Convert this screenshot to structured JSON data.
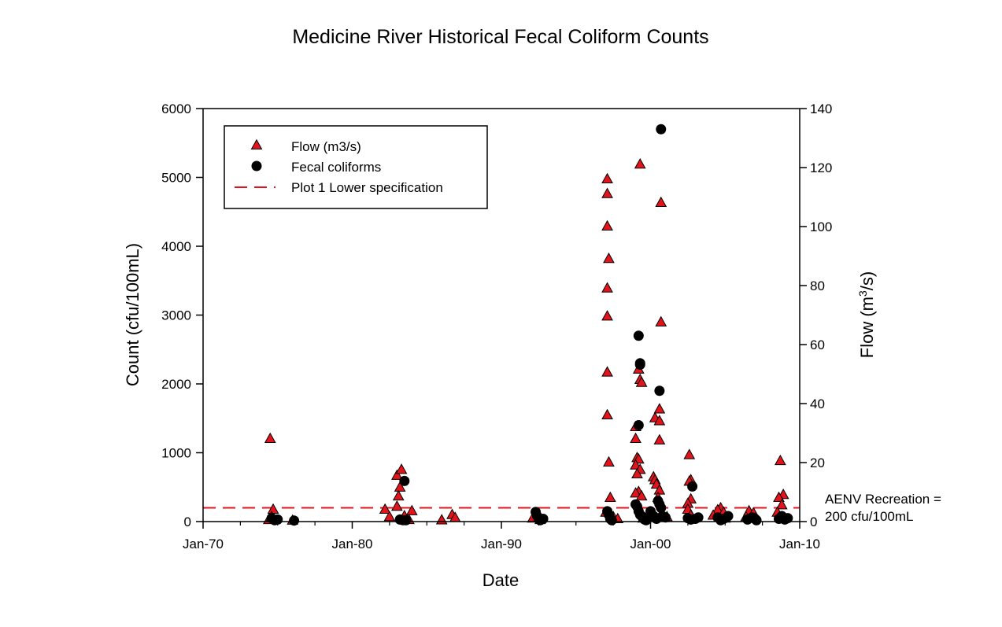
{
  "chart_data": {
    "type": "scatter",
    "title": "Medicine River Historical Fecal Coliform Counts",
    "xlabel": "Date",
    "ylabel": "Count (cfu/100mL)",
    "y2label": {
      "prefix": "Flow (m",
      "superscript": "3",
      "suffix": "/s)"
    },
    "xlim": [
      1970.0,
      2010.0
    ],
    "ylim": [
      0,
      6000
    ],
    "y2lim": [
      0,
      140
    ],
    "x_ticks": [
      {
        "value": 1970.0,
        "label": "Jan-70"
      },
      {
        "value": 1980.0,
        "label": "Jan-80"
      },
      {
        "value": 1990.0,
        "label": "Jan-90"
      },
      {
        "value": 2000.0,
        "label": "Jan-00"
      },
      {
        "value": 2010.0,
        "label": "Jan-10"
      }
    ],
    "x_minor_ticks": [
      1972.5,
      1975,
      1977.5,
      1982.5,
      1985,
      1987.5,
      1992.5,
      1995,
      1997.5,
      2002.5,
      2005,
      2007.5
    ],
    "y_ticks": [
      {
        "value": 0,
        "label": "0"
      },
      {
        "value": 1000,
        "label": "1000"
      },
      {
        "value": 2000,
        "label": "2000"
      },
      {
        "value": 3000,
        "label": "3000"
      },
      {
        "value": 4000,
        "label": "4000"
      },
      {
        "value": 5000,
        "label": "5000"
      },
      {
        "value": 6000,
        "label": "6000"
      }
    ],
    "y2_ticks": [
      {
        "value": 0,
        "label": "0"
      },
      {
        "value": 20,
        "label": "20"
      },
      {
        "value": 40,
        "label": "40"
      },
      {
        "value": 60,
        "label": "60"
      },
      {
        "value": 80,
        "label": "80"
      },
      {
        "value": 100,
        "label": "100"
      },
      {
        "value": 120,
        "label": "120"
      },
      {
        "value": 140,
        "label": "140"
      }
    ],
    "legend": {
      "position": "top-left",
      "entries": [
        {
          "name": "Flow (m3/s)",
          "marker": "triangle"
        },
        {
          "name": "Fecal coliforms",
          "marker": "circle"
        },
        {
          "name": "Plot 1 Lower specification",
          "marker": "dashed-line"
        }
      ]
    },
    "series": [
      {
        "name": "Flow (m3/s)",
        "axis": "right",
        "marker": "triangle",
        "color": "#e3131b",
        "points": [
          [
            1974.5,
            28.0
          ],
          [
            1974.7,
            4.0
          ],
          [
            1974.4,
            0.5
          ],
          [
            1974.6,
            1.5
          ],
          [
            1976.0,
            0.3
          ],
          [
            1982.2,
            4.0
          ],
          [
            1982.5,
            1.5
          ],
          [
            1983.0,
            15.5
          ],
          [
            1983.3,
            17.5
          ],
          [
            1983.2,
            11.5
          ],
          [
            1983.1,
            8.5
          ],
          [
            1983.0,
            5.0
          ],
          [
            1983.5,
            1.8
          ],
          [
            1984.0,
            3.5
          ],
          [
            1983.8,
            0.5
          ],
          [
            1986.0,
            0.4
          ],
          [
            1986.7,
            2.2
          ],
          [
            1986.9,
            1.2
          ],
          [
            1992.3,
            2.5
          ],
          [
            1992.1,
            1.0
          ],
          [
            1992.6,
            0.5
          ],
          [
            1997.1,
            116.0
          ],
          [
            1997.1,
            111.0
          ],
          [
            1997.1,
            100.0
          ],
          [
            1997.2,
            89.0
          ],
          [
            1997.1,
            79.0
          ],
          [
            1997.1,
            69.5
          ],
          [
            1997.1,
            50.5
          ],
          [
            1997.1,
            36.0
          ],
          [
            1997.2,
            20.0
          ],
          [
            1997.3,
            8.0
          ],
          [
            1997.0,
            3.0
          ],
          [
            1997.5,
            1.5
          ],
          [
            1997.8,
            0.8
          ],
          [
            1999.0,
            28.0
          ],
          [
            1999.0,
            32.0
          ],
          [
            1999.1,
            21.5
          ],
          [
            1999.2,
            21.0
          ],
          [
            1999.0,
            19.0
          ],
          [
            1999.3,
            17.5
          ],
          [
            1999.1,
            16.0
          ],
          [
            1999.2,
            10.0
          ],
          [
            1999.0,
            9.5
          ],
          [
            1999.4,
            8.5
          ],
          [
            1999.2,
            51.5
          ],
          [
            1999.3,
            48.0
          ],
          [
            1999.4,
            47.0
          ],
          [
            1999.3,
            121.0
          ],
          [
            2000.3,
            35.0
          ],
          [
            2000.6,
            38.0
          ],
          [
            2000.6,
            34.0
          ],
          [
            2000.6,
            27.5
          ],
          [
            2000.2,
            15.0
          ],
          [
            2000.3,
            14.0
          ],
          [
            2000.4,
            12.5
          ],
          [
            2000.6,
            10.5
          ],
          [
            2000.5,
            8.0
          ],
          [
            2000.7,
            108.0
          ],
          [
            2000.7,
            67.5
          ],
          [
            2000.0,
            2.5
          ],
          [
            2000.8,
            2.0
          ],
          [
            2001.1,
            1.5
          ],
          [
            1999.5,
            1.0
          ],
          [
            2002.6,
            22.5
          ],
          [
            2002.7,
            14.0
          ],
          [
            2002.6,
            13.5
          ],
          [
            2002.7,
            7.5
          ],
          [
            2002.5,
            6.0
          ],
          [
            2002.5,
            4.0
          ],
          [
            2002.7,
            2.0
          ],
          [
            2004.7,
            4.5
          ],
          [
            2004.5,
            3.8
          ],
          [
            2004.9,
            3.0
          ],
          [
            2004.2,
            2.0
          ],
          [
            2005.0,
            1.0
          ],
          [
            2006.6,
            3.5
          ],
          [
            2006.9,
            2.8
          ],
          [
            2006.4,
            1.5
          ],
          [
            2007.0,
            1.0
          ],
          [
            2008.7,
            20.5
          ],
          [
            2008.9,
            9.0
          ],
          [
            2008.6,
            8.0
          ],
          [
            2008.8,
            5.5
          ],
          [
            2008.5,
            3.0
          ],
          [
            2009.0,
            1.0
          ]
        ]
      },
      {
        "name": "Fecal coliforms",
        "axis": "left",
        "marker": "circle",
        "color": "#000000",
        "points": [
          [
            1974.6,
            50
          ],
          [
            1974.8,
            20
          ],
          [
            1975.0,
            30
          ],
          [
            1976.1,
            15
          ],
          [
            1983.2,
            30
          ],
          [
            1983.4,
            20
          ],
          [
            1983.5,
            590
          ],
          [
            1983.6,
            20
          ],
          [
            1992.3,
            140
          ],
          [
            1992.4,
            80
          ],
          [
            1992.5,
            40
          ],
          [
            1992.6,
            20
          ],
          [
            1992.8,
            40
          ],
          [
            1997.1,
            150
          ],
          [
            1997.2,
            100
          ],
          [
            1997.3,
            40
          ],
          [
            1997.4,
            20
          ],
          [
            1999.0,
            250
          ],
          [
            1999.1,
            220
          ],
          [
            1999.2,
            150
          ],
          [
            1999.3,
            100
          ],
          [
            1999.4,
            80
          ],
          [
            1999.5,
            50
          ],
          [
            1999.6,
            30
          ],
          [
            1999.7,
            20
          ],
          [
            1999.2,
            2700
          ],
          [
            1999.3,
            2300
          ],
          [
            1999.3,
            2280
          ],
          [
            1999.2,
            1400
          ],
          [
            2000.0,
            150
          ],
          [
            2000.1,
            100
          ],
          [
            2000.2,
            80
          ],
          [
            2000.3,
            60
          ],
          [
            2000.4,
            40
          ],
          [
            2000.5,
            300
          ],
          [
            2000.6,
            250
          ],
          [
            2000.7,
            200
          ],
          [
            2000.8,
            80
          ],
          [
            2001.0,
            60
          ],
          [
            2000.7,
            5700
          ],
          [
            2000.6,
            1900
          ],
          [
            2002.5,
            50
          ],
          [
            2002.7,
            30
          ],
          [
            2002.8,
            510
          ],
          [
            2003.0,
            40
          ],
          [
            2003.2,
            60
          ],
          [
            2004.5,
            60
          ],
          [
            2004.7,
            20
          ],
          [
            2004.9,
            40
          ],
          [
            2005.2,
            80
          ],
          [
            2006.5,
            30
          ],
          [
            2006.8,
            60
          ],
          [
            2007.0,
            40
          ],
          [
            2007.1,
            20
          ],
          [
            2008.6,
            40
          ],
          [
            2008.8,
            80
          ],
          [
            2009.0,
            30
          ],
          [
            2009.2,
            50
          ]
        ]
      }
    ],
    "reference_line": {
      "name": "Plot 1 Lower specification",
      "axis": "left",
      "value": 200,
      "color": "#e3131b",
      "style": "dashed",
      "label_lines": [
        "AENV Recreation =",
        "200 cfu/100mL"
      ]
    },
    "grid": false
  }
}
